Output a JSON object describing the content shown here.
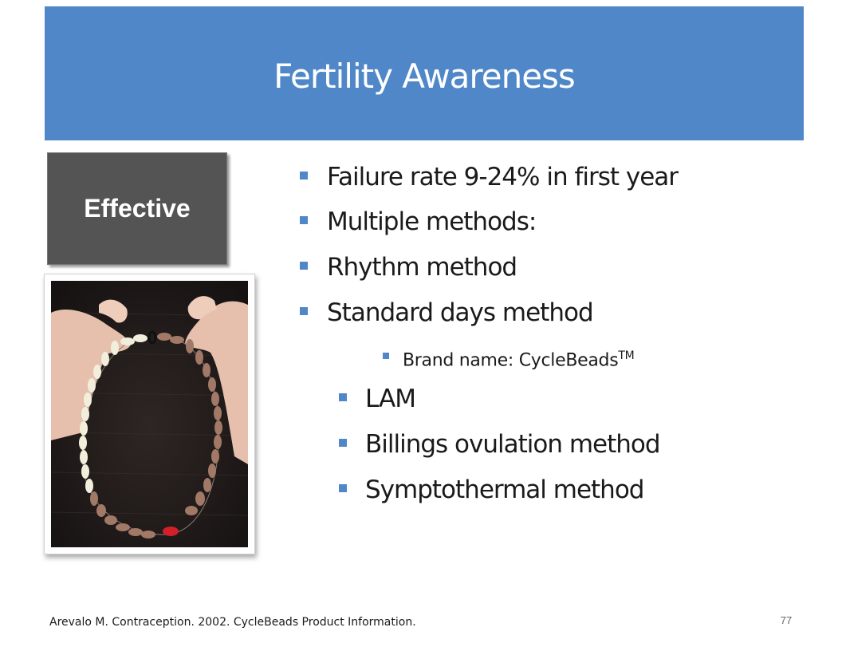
{
  "slide": {
    "title": "Fertility Awareness",
    "label_box": "Effective",
    "bullets": {
      "failure_rate": "Failure rate 9-24% in first year",
      "multiple_methods": "Multiple methods:",
      "rhythm": "Rhythm method",
      "standard_days": "Standard days method",
      "brand_name": "Brand name: CycleBeads",
      "brand_tm": "TM",
      "lam": "LAM",
      "billings": "Billings ovulation method",
      "symptothermal": "Symptothermal method"
    },
    "footer_citation": "Arevalo M. Contraception. 2002. CycleBeads Product Information.",
    "page_number": "77"
  },
  "colors": {
    "title_bar": "#4f87c8",
    "label_box": "#545454",
    "bullet_marker": "#4f87c8"
  },
  "icons": {
    "bullet": "square-bullet-icon",
    "photo": "cyclebeads-photo"
  }
}
